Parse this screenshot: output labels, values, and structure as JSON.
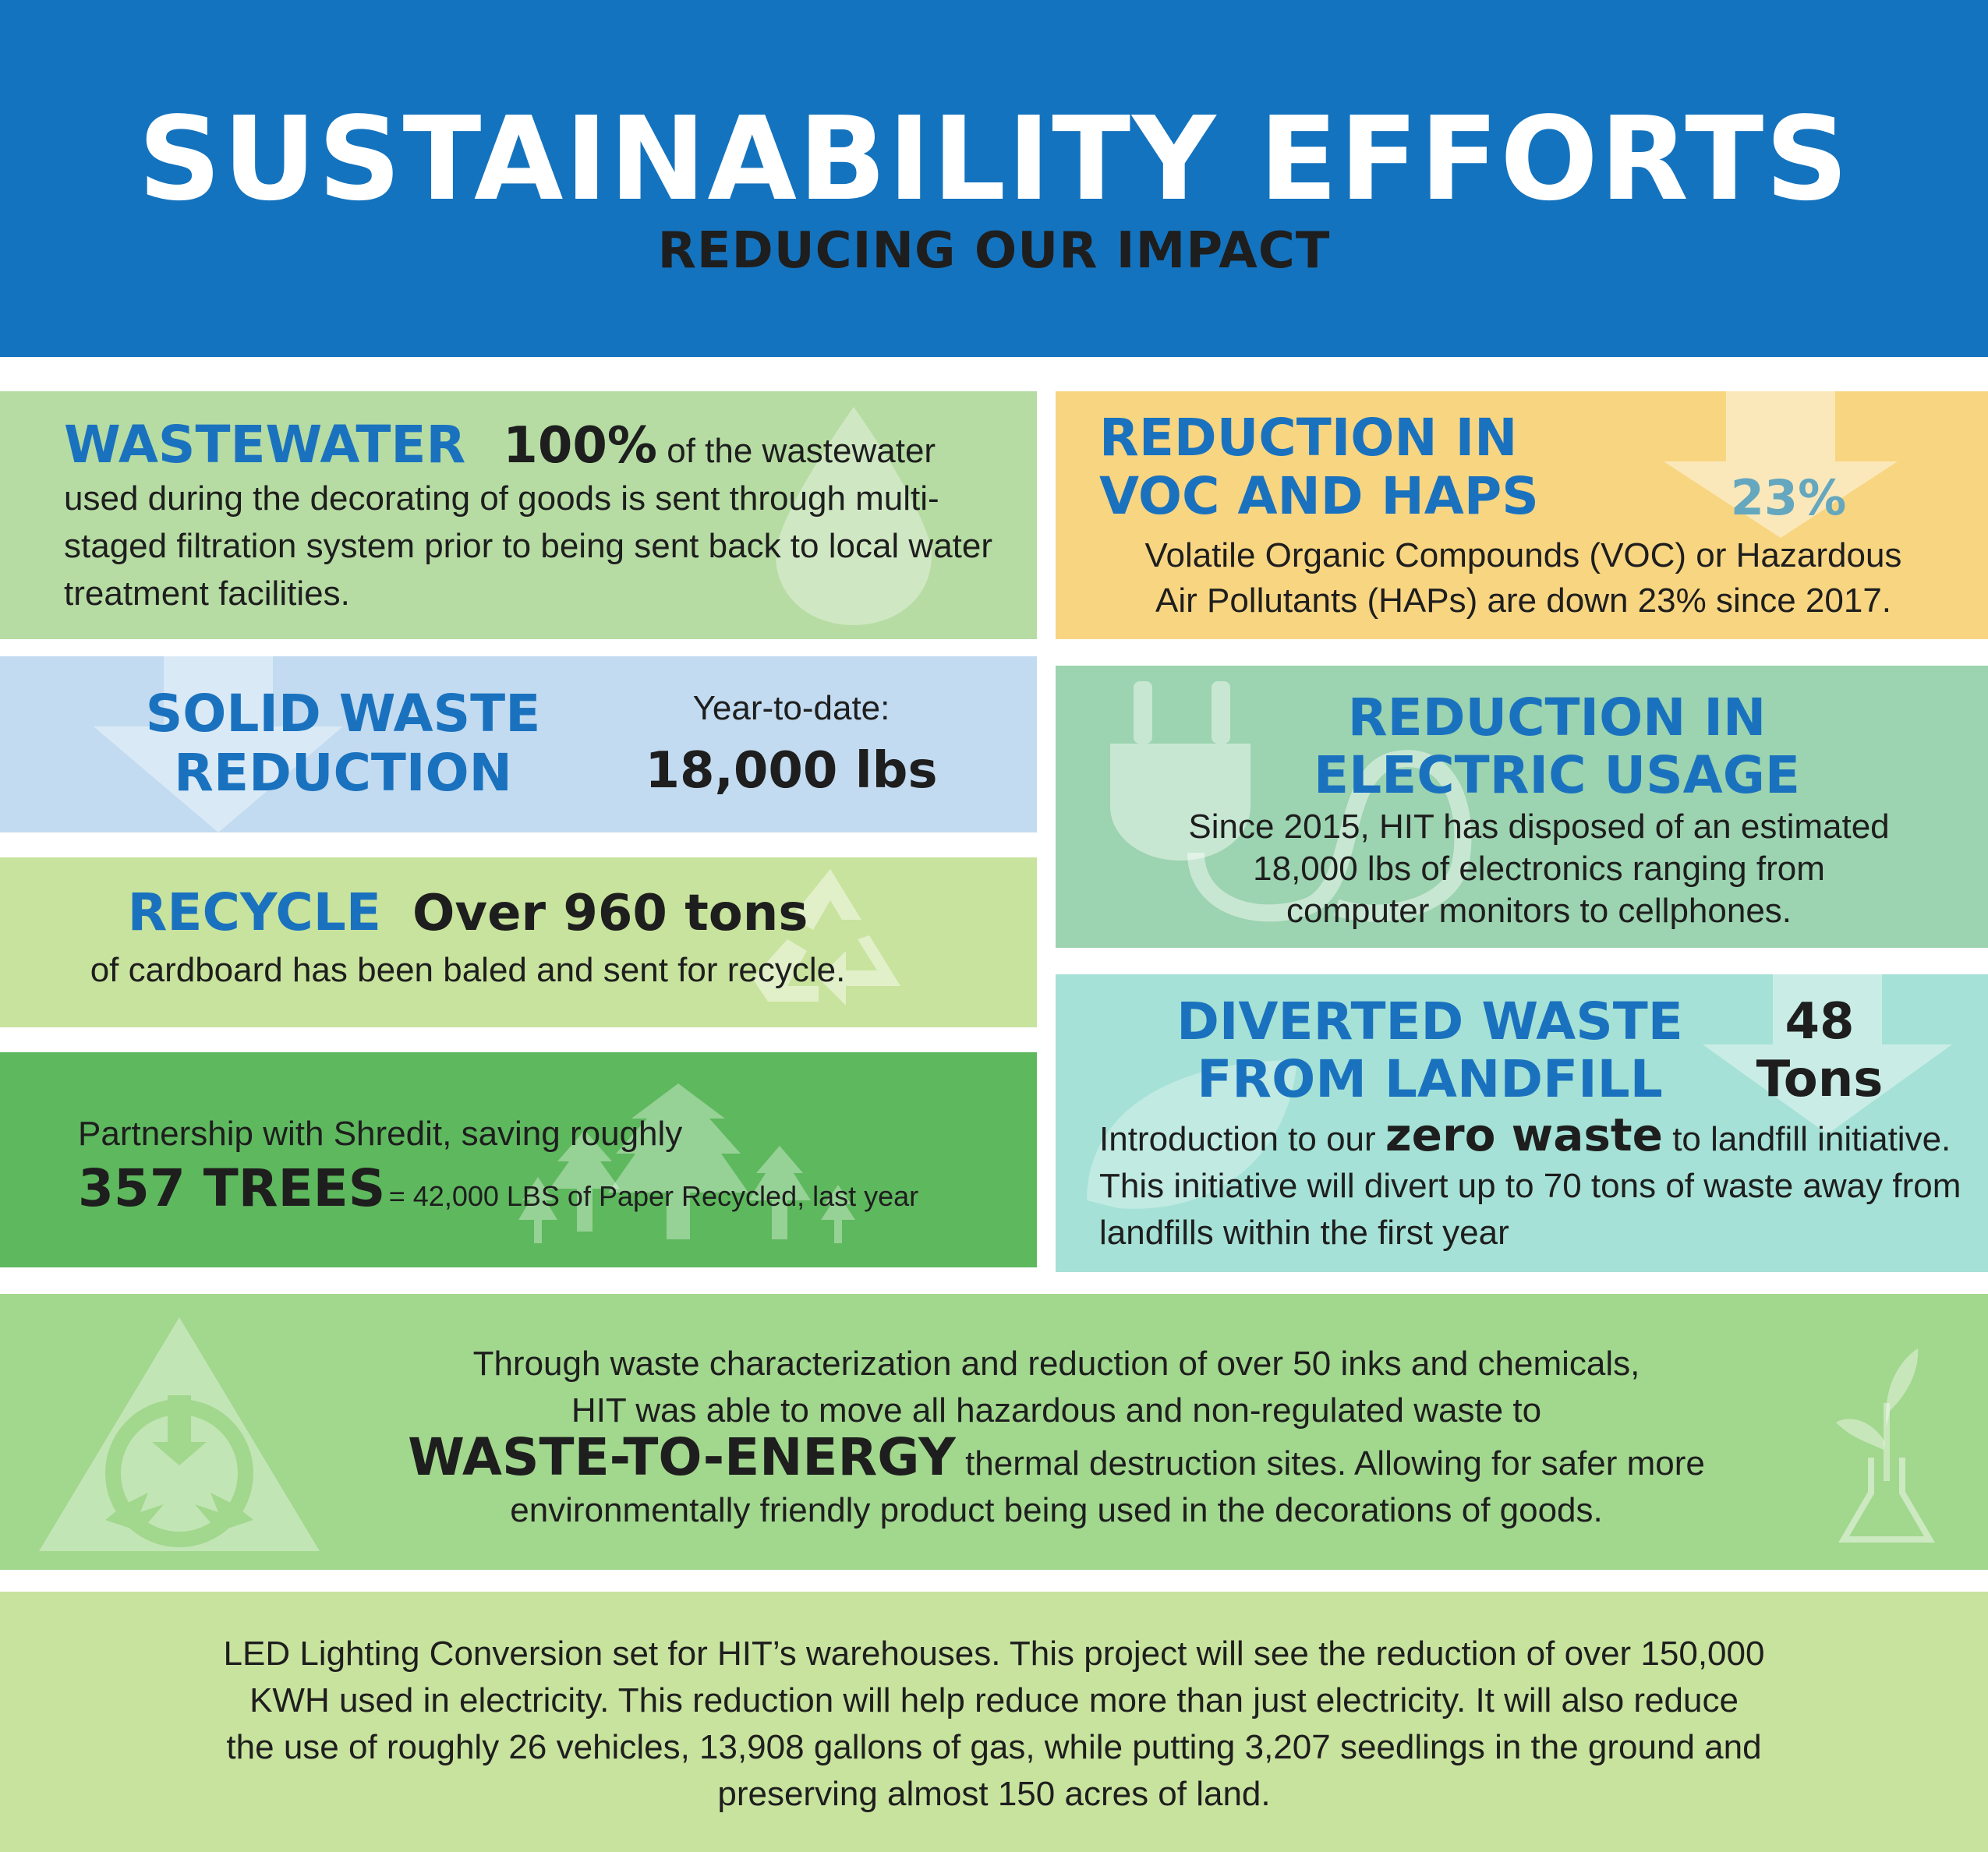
{
  "header": {
    "title": "SUSTAINABILITY EFFORTS",
    "subtitle": "REDUCING OUR IMPACT",
    "background_color": "#1473be"
  },
  "wastewater": {
    "heading": "WASTEWATER",
    "stat": "100%",
    "text": "of the wastewater used during the decorating of goods is sent through multi-staged filtration system prior to being sent back to local water treatment facilities.",
    "icon": "water-drop-icon",
    "background_color": "#b6dca3"
  },
  "voc": {
    "heading_line1": "REDUCTION IN",
    "heading_line2": "VOC AND HAPS",
    "stat": "23%",
    "text_line1": "Volatile Organic Compounds (VOC) or Hazardous",
    "text_line2": "Air Pollutants (HAPs) are down 23% since 2017.",
    "icon": "down-arrow-icon",
    "background_color": "#f8d581"
  },
  "solid_waste": {
    "heading_line1": "SOLID WASTE",
    "heading_line2": "REDUCTION",
    "label": "Year-to-date:",
    "amount": "18,000 lbs",
    "icon": "down-arrow-icon",
    "background_color": "#c2dbf0"
  },
  "electric": {
    "heading_line1": "REDUCTION IN",
    "heading_line2": "ELECTRIC USAGE",
    "text_line1": "Since 2015, HIT has disposed of an estimated",
    "text_line2": "18,000 lbs of electronics ranging from",
    "text_line3": "computer monitors to cellphones.",
    "icon": "power-plug-icon",
    "background_color": "#9cd3b0"
  },
  "recycle": {
    "heading": "RECYCLE",
    "stat": "Over 960 tons",
    "text": "of cardboard has been baled and sent for recycle.",
    "icon": "recycle-icon",
    "background_color": "#c8e39d"
  },
  "diverted": {
    "heading_line1": "DIVERTED WASTE",
    "heading_line2": "FROM LANDFILL",
    "stat_line1": "48",
    "stat_line2": "Tons",
    "text_before": "Introduction to our",
    "text_emphasis": "zero waste",
    "text_after": "to landfill initiative. This initiative will divert up to 70 tons of waste away from landfills within the first year",
    "icon": "leaf-icon",
    "background_color": "#a5e1d6"
  },
  "trees": {
    "text": "Partnership with Shredit, saving roughly",
    "stat": "357 TREES",
    "equivalent": "= 42,000 LBS of Paper Recycled, last year",
    "icon": "trees-icon",
    "background_color": "#5eb85e"
  },
  "energy": {
    "text_line1": "Through waste characterization and reduction of over 50 inks and chemicals,",
    "text_line2": "HIT was able to move all hazardous and non-regulated waste to",
    "emphasis": "WASTE-TO-ENERGY",
    "text_line3": "thermal destruction sites. Allowing for safer more",
    "text_line4": "environmentally friendly product being used in the decorations of goods.",
    "icon_left": "waste-to-energy-triangle-icon",
    "icon_right": "plant-flask-icon",
    "background_color": "#a2d78e"
  },
  "led": {
    "text_line1": "LED Lighting Conversion set for HIT’s warehouses. This project will see the reduction of over 150,000",
    "text_line2": "KWH used in electricity. This reduction will help reduce more than just electricity. It will also reduce",
    "text_line3": "the use of roughly 26 vehicles, 13,908 gallons of gas, while putting 3,207 seedlings in the ground and",
    "text_line4": "preserving almost 150 acres of land.",
    "background_color": "#c8e39d"
  }
}
